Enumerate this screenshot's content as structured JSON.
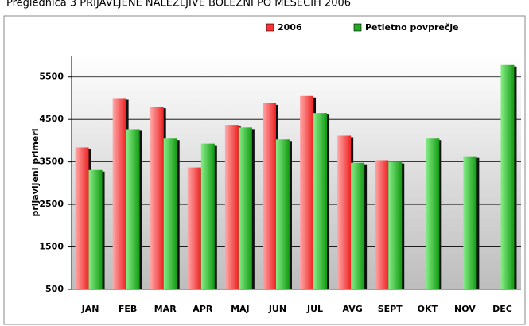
{
  "chart_data": {
    "type": "bar",
    "title": "Preglednica 3 PRIJAVLJENE NALEZLJIVE BOLEZNI PO MESECIH 2006",
    "y_label": "prijavljeni primeri",
    "categories": [
      "JAN",
      "FEB",
      "MAR",
      "APR",
      "MAJ",
      "JUN",
      "JUL",
      "AVG",
      "SEPT",
      "OKT",
      "NOV",
      "DEC"
    ],
    "series": [
      {
        "name": "2006",
        "color": "#ff3333",
        "values": [
          3840,
          5000,
          4800,
          3370,
          4370,
          4880,
          5050,
          4120,
          3540,
          null,
          null,
          null
        ]
      },
      {
        "name": "Petletno povprečje",
        "color": "#22aa22",
        "values": [
          3310,
          4270,
          4050,
          3930,
          4310,
          4030,
          4650,
          3480,
          3500,
          4050,
          3630,
          5780
        ]
      }
    ],
    "ylim": [
      500,
      6000
    ],
    "yticks": [
      500,
      1500,
      2500,
      3500,
      4500,
      5500
    ],
    "grid": true,
    "legend": "top"
  }
}
